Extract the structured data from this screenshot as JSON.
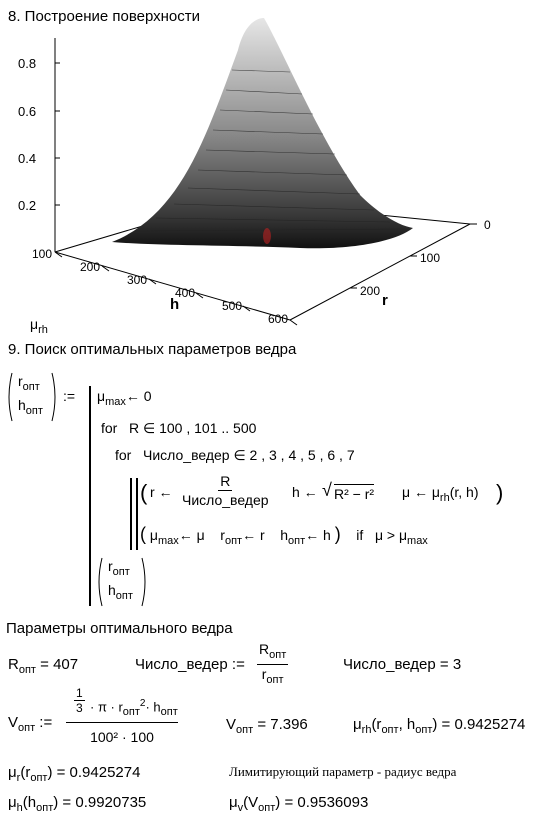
{
  "section8": {
    "title": "8. Построение поверхности",
    "z_ticks": [
      "0.8",
      "0.6",
      "0.4",
      "0.2"
    ],
    "h_ticks": [
      "100",
      "200",
      "300",
      "400",
      "500",
      "600"
    ],
    "r_ticks": [
      "0",
      "100",
      "200"
    ],
    "h_axis": "h",
    "r_axis": "r",
    "z_axis_main": "μ",
    "z_axis_sub": "rh"
  },
  "section9": {
    "title": "9. Поиск оптимальных параметров ведра",
    "lhs_r": "r",
    "lhs_h": "h",
    "sub_opt": "опт",
    "assign": ":=",
    "l1": "μ",
    "l1_sub": "max",
    "l1_rest": "← 0",
    "l2_for": "for",
    "l2_var": "R ∈ 100 , 101 .. 500",
    "l3_for": "for",
    "l3_var": "Число_ведер ∈ 2 , 3 , 4 , 5 , 6 , 7",
    "l4_r": "r ←",
    "l4_num": "R",
    "l4_den": "Число_ведер",
    "l4_h": "h ←",
    "l4_sqrt": "R² − r²",
    "l4_mu": "μ ← μ",
    "l4_mu_sub": "rh",
    "l4_mu_args": "(r, h)",
    "l5_a": "μ",
    "l5_a_sub": "max",
    "l5_a_rest": "← μ",
    "l5_b": "r",
    "l5_b_rest": "← r",
    "l5_c": "h",
    "l5_c_rest": "← h",
    "l5_if": "if",
    "l5_cond": "μ > μ",
    "l5_cond_sub": "max"
  },
  "params": {
    "title": "Параметры оптимального ведра",
    "r_opt_label": "R",
    "r_opt_value": "= 407",
    "count_label": "Число_ведер :=",
    "count_num": "R",
    "count_den": "r",
    "count_result": "Число_ведер = 3",
    "v_label": "V",
    "v_num_a": "1",
    "v_num_b": "3",
    "v_num_rest": "· π · r",
    "v_num_rest2": "· h",
    "v_den": "100² · 100",
    "v_value": "= 7.396",
    "mu_rh_value": "= 0.9425274",
    "mu_r_value": "= 0.9425274",
    "note": "Лимитирующий параметр - радиус ведра",
    "mu_h_value": "= 0.9920735",
    "mu_v_value": "= 0.9536093",
    "sub_rh": "rh",
    "sub_r": "r",
    "sub_h": "h",
    "sub_v": "v",
    "mu": "μ"
  }
}
